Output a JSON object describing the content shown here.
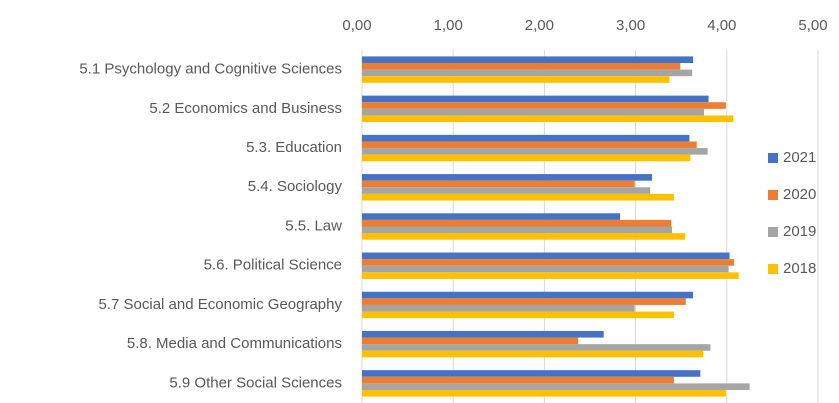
{
  "chart_data": {
    "type": "bar",
    "orientation": "horizontal",
    "categories": [
      "5.1 Psychology and Cognitive Sciences",
      "5.2 Economics and Business",
      "5.3. Education",
      "5.4. Sociology",
      "5.5. Law",
      "5.6. Political Science",
      "5.7 Social and Economic Geography",
      "5.8. Media and Communications",
      "5.9 Other Social Sciences"
    ],
    "series": [
      {
        "name": "2021",
        "color": "#4472c4",
        "values": [
          3.63,
          3.8,
          3.59,
          3.18,
          2.83,
          4.03,
          3.63,
          2.65,
          3.71
        ]
      },
      {
        "name": "2020",
        "color": "#ed7d31",
        "values": [
          3.49,
          3.99,
          3.67,
          2.99,
          3.39,
          4.08,
          3.55,
          2.37,
          3.42
        ]
      },
      {
        "name": "2019",
        "color": "#a5a5a5",
        "values": [
          3.62,
          3.75,
          3.79,
          3.16,
          3.4,
          4.02,
          2.99,
          3.82,
          4.25
        ]
      },
      {
        "name": "2018",
        "color": "#ffc000",
        "values": [
          3.37,
          4.07,
          3.6,
          3.42,
          3.54,
          4.13,
          3.42,
          3.74,
          3.99
        ]
      }
    ],
    "xlim": [
      0,
      5
    ],
    "xticks": [
      {
        "value": 0,
        "label": "0,00"
      },
      {
        "value": 1,
        "label": "1,00"
      },
      {
        "value": 2,
        "label": "2,00"
      },
      {
        "value": 3,
        "label": "3,00"
      },
      {
        "value": 4,
        "label": "4,00"
      },
      {
        "value": 5,
        "label": "5,00"
      }
    ],
    "grid": true,
    "legend": "right"
  }
}
